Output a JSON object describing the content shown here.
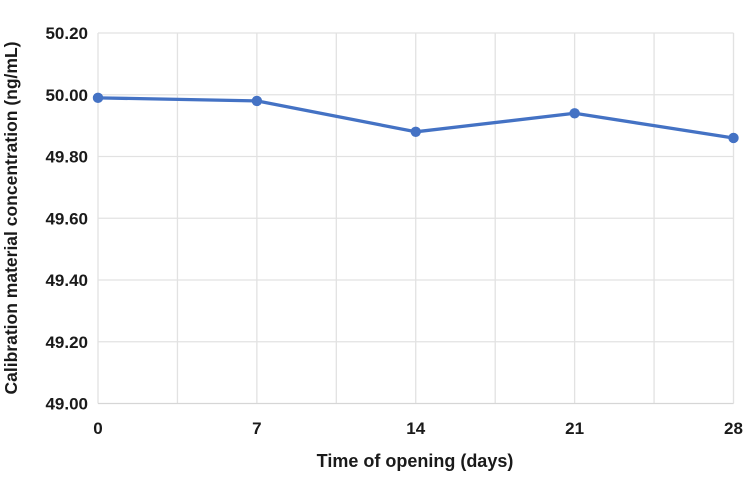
{
  "chart_data": {
    "type": "line",
    "title": "",
    "xlabel": "Time of opening (days)",
    "ylabel": "Calibration material concentration (ng/mL)",
    "x": [
      0,
      7,
      14,
      21,
      28
    ],
    "values": [
      49.99,
      49.98,
      49.88,
      49.94,
      49.86
    ],
    "xlim": [
      0,
      28
    ],
    "ylim": [
      49.0,
      50.2
    ],
    "yticks": [
      49.0,
      49.2,
      49.4,
      49.6,
      49.8,
      50.0,
      50.2
    ],
    "ytick_labels": [
      "49.00",
      "49.20",
      "49.40",
      "49.60",
      "49.80",
      "50.00",
      "50.20"
    ],
    "xticks": [
      0,
      7,
      14,
      21,
      28
    ],
    "xtick_labels": [
      "0",
      "7",
      "14",
      "21",
      "28"
    ],
    "x_gridlines": [
      0,
      3.5,
      7,
      10.5,
      14,
      17.5,
      21,
      24.5,
      28
    ],
    "grid": "on",
    "legend_position": "none",
    "colors": {
      "line": "#4472C4",
      "marker": "#4472C4",
      "gridline": "#E2E2E2",
      "axis_line": "#D6D6D6",
      "text": "#1A1A1A",
      "background": "#FFFFFF"
    }
  }
}
